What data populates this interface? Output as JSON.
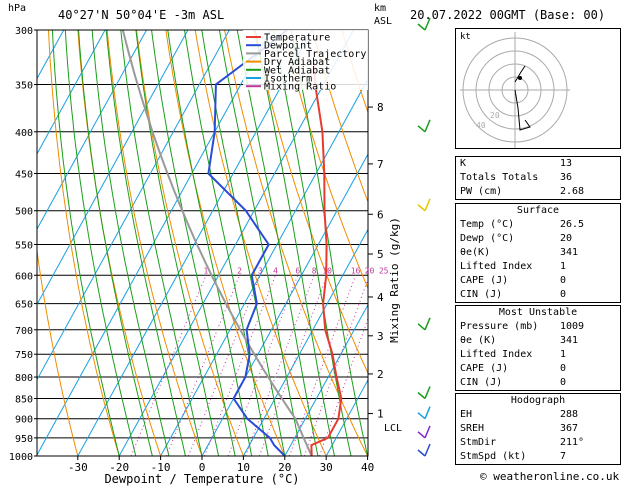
{
  "header": {
    "pressure_unit": "hPa",
    "location": "40°27'N  50°04'E  -3m ASL",
    "km_label": "km",
    "asl_label": "ASL",
    "datetime": "20.07.2022  00GMT  (Base: 00)"
  },
  "legend": [
    {
      "label": "Temperature",
      "color": "#e83a2f"
    },
    {
      "label": "Dewpoint",
      "color": "#2a4bd7"
    },
    {
      "label": "Parcel Trajectory",
      "color": "#999999"
    },
    {
      "label": "Dry Adiabat",
      "color": "#f08c00"
    },
    {
      "label": "Wet Adiabat",
      "color": "#1a9e1a"
    },
    {
      "label": "Isotherm",
      "color": "#18a0e0"
    },
    {
      "label": "Mixing Ratio",
      "color": "#c0389c"
    }
  ],
  "chart_data": {
    "type": "line",
    "xlabel": "Dewpoint / Temperature (°C)",
    "ylabel_right": "Mixing Ratio (g/kg)",
    "x_ticks": [
      -30,
      -20,
      -10,
      0,
      10,
      20,
      30,
      40
    ],
    "pressure_ticks": [
      300,
      350,
      400,
      450,
      500,
      550,
      600,
      650,
      700,
      750,
      800,
      850,
      900,
      950,
      1000
    ],
    "km_ticks": [
      {
        "p": 373,
        "label": "8"
      },
      {
        "p": 438,
        "label": "7"
      },
      {
        "p": 505,
        "label": "6"
      },
      {
        "p": 565,
        "label": "5"
      },
      {
        "p": 638,
        "label": "4"
      },
      {
        "p": 712,
        "label": "3"
      },
      {
        "p": 793,
        "label": "2"
      },
      {
        "p": 887,
        "label": "1"
      }
    ],
    "lcl": {
      "p": 903,
      "label": "LCL"
    },
    "mixing_ratio_labels": [
      "1",
      "2",
      "3",
      "4",
      "6",
      "8",
      "10",
      "16",
      "20",
      "25"
    ],
    "mixing_ratio_values": [
      1,
      2,
      3,
      4,
      6,
      8,
      10,
      16,
      20,
      25
    ],
    "series": [
      {
        "name": "Temperature",
        "points": [
          [
            1000,
            26.5
          ],
          [
            970,
            25
          ],
          [
            950,
            28
          ],
          [
            900,
            28
          ],
          [
            850,
            26
          ],
          [
            800,
            22
          ],
          [
            750,
            18
          ],
          [
            700,
            13
          ],
          [
            650,
            9
          ],
          [
            600,
            6
          ],
          [
            550,
            2
          ],
          [
            500,
            -3
          ],
          [
            450,
            -8
          ],
          [
            400,
            -14
          ],
          [
            350,
            -22
          ],
          [
            330,
            -25
          ]
        ]
      },
      {
        "name": "Dewpoint",
        "points": [
          [
            1000,
            20
          ],
          [
            970,
            16
          ],
          [
            950,
            14
          ],
          [
            900,
            6
          ],
          [
            850,
            0
          ],
          [
            800,
            0
          ],
          [
            750,
            -2
          ],
          [
            700,
            -6
          ],
          [
            650,
            -7
          ],
          [
            600,
            -12
          ],
          [
            550,
            -12
          ],
          [
            500,
            -22
          ],
          [
            450,
            -36
          ],
          [
            400,
            -40
          ],
          [
            350,
            -46
          ],
          [
            320,
            -40
          ],
          [
            300,
            -36
          ]
        ]
      }
    ]
  },
  "hodograph": {
    "label": "kt",
    "ring_labels": [
      "20",
      "40"
    ]
  },
  "indices": {
    "rows": [
      {
        "label": "K",
        "value": "13"
      },
      {
        "label": "Totals Totals",
        "value": "36"
      },
      {
        "label": "PW (cm)",
        "value": "2.68"
      }
    ]
  },
  "surface": {
    "title": "Surface",
    "rows": [
      {
        "label": "Temp (°C)",
        "value": "26.5"
      },
      {
        "label": "Dewp (°C)",
        "value": "20"
      },
      {
        "label": "θe(K)",
        "value": "341"
      },
      {
        "label": "Lifted Index",
        "value": "1"
      },
      {
        "label": "CAPE (J)",
        "value": "0"
      },
      {
        "label": "CIN (J)",
        "value": "0"
      }
    ]
  },
  "unstable": {
    "title": "Most Unstable",
    "rows": [
      {
        "label": "Pressure (mb)",
        "value": "1009"
      },
      {
        "label": "θe (K)",
        "value": "341"
      },
      {
        "label": "Lifted Index",
        "value": "1"
      },
      {
        "label": "CAPE (J)",
        "value": "0"
      },
      {
        "label": "CIN (J)",
        "value": "0"
      }
    ]
  },
  "hodo_table": {
    "title": "Hodograph",
    "rows": [
      {
        "label": "EH",
        "value": "288"
      },
      {
        "label": "SREH",
        "value": "367"
      },
      {
        "label": "StmDir",
        "value": "211°"
      },
      {
        "label": "StmSpd (kt)",
        "value": "7"
      }
    ]
  },
  "footer": "© weatheronline.co.uk"
}
